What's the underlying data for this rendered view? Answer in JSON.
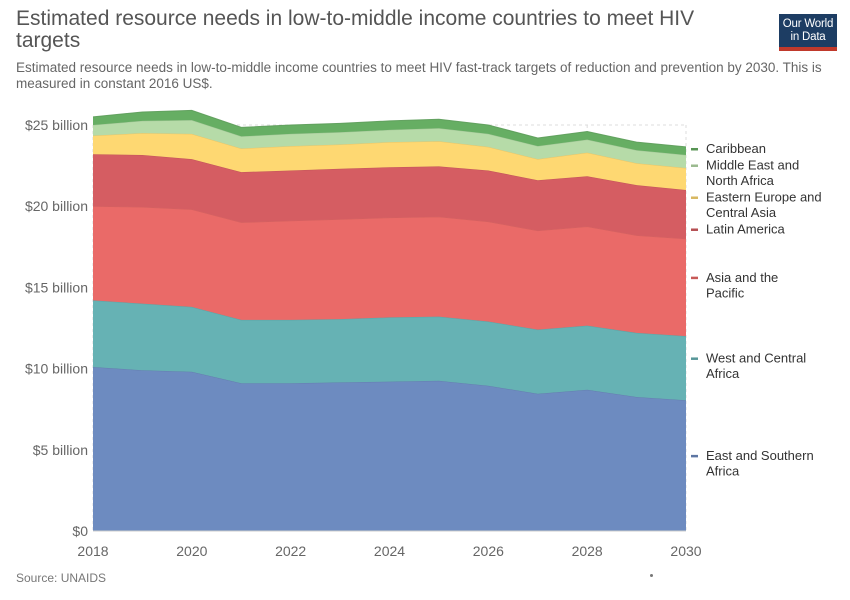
{
  "header": {
    "title": "Estimated resource needs in low-to-middle income countries to meet HIV targets",
    "subtitle": "Estimated resource needs in low-to-middle income countries to meet HIV fast-track targets of reduction and prevention by 2030. This is measured in constant 2016 US$.",
    "logo_line1": "Our World",
    "logo_line2": "in Data"
  },
  "footer": {
    "source": "Source: UNAIDS"
  },
  "chart_data": {
    "type": "area",
    "stacked": true,
    "x": [
      2018,
      2019,
      2020,
      2021,
      2022,
      2023,
      2024,
      2025,
      2026,
      2027,
      2028,
      2029,
      2030
    ],
    "xlim": [
      2018,
      2030
    ],
    "ylim": [
      0,
      25000000000
    ],
    "xticks": [
      "2018",
      "2020",
      "2022",
      "2024",
      "2026",
      "2028",
      "2030"
    ],
    "yticks": [
      {
        "value": 0,
        "label": "$0"
      },
      {
        "value": 5000000000,
        "label": "$5 billion"
      },
      {
        "value": 10000000000,
        "label": "$10 billion"
      },
      {
        "value": 15000000000,
        "label": "$15 billion"
      },
      {
        "value": 20000000000,
        "label": "$20 billion"
      },
      {
        "value": 25000000000,
        "label": "$25 billion"
      }
    ],
    "grid": true,
    "legend_position": "right",
    "series": [
      {
        "name": "East and Southern Africa",
        "color": "#6d8bc0",
        "values": [
          10.1,
          9.9,
          9.8,
          9.1,
          9.1,
          9.15,
          9.2,
          9.25,
          8.95,
          8.45,
          8.7,
          8.25,
          8.05
        ]
      },
      {
        "name": "West and Central Africa",
        "color": "#66b2b4",
        "values": [
          4.1,
          4.1,
          4.0,
          3.9,
          3.9,
          3.9,
          3.95,
          3.95,
          3.95,
          3.95,
          3.95,
          3.95,
          3.95
        ]
      },
      {
        "name": "Asia and the Pacific",
        "color": "#ea6a68",
        "values": [
          5.8,
          5.95,
          6.0,
          6.0,
          6.1,
          6.15,
          6.15,
          6.15,
          6.15,
          6.1,
          6.1,
          6.0,
          6.0
        ]
      },
      {
        "name": "Latin America",
        "color": "#d55d62",
        "values": [
          3.2,
          3.2,
          3.1,
          3.1,
          3.1,
          3.1,
          3.1,
          3.1,
          3.15,
          3.1,
          3.1,
          3.1,
          3.0
        ]
      },
      {
        "name": "Eastern Europe and Central Asia",
        "color": "#fed872",
        "values": [
          1.15,
          1.35,
          1.55,
          1.45,
          1.5,
          1.5,
          1.55,
          1.55,
          1.45,
          1.3,
          1.45,
          1.35,
          1.35
        ]
      },
      {
        "name": "Middle East and North Africa",
        "color": "#b6dba8",
        "values": [
          0.65,
          0.75,
          0.85,
          0.75,
          0.75,
          0.75,
          0.75,
          0.8,
          0.8,
          0.8,
          0.8,
          0.8,
          0.8
        ]
      },
      {
        "name": "Caribbean",
        "color": "#66ae63",
        "values": [
          0.5,
          0.55,
          0.6,
          0.55,
          0.55,
          0.55,
          0.55,
          0.55,
          0.55,
          0.5,
          0.5,
          0.5,
          0.5
        ]
      }
    ]
  }
}
